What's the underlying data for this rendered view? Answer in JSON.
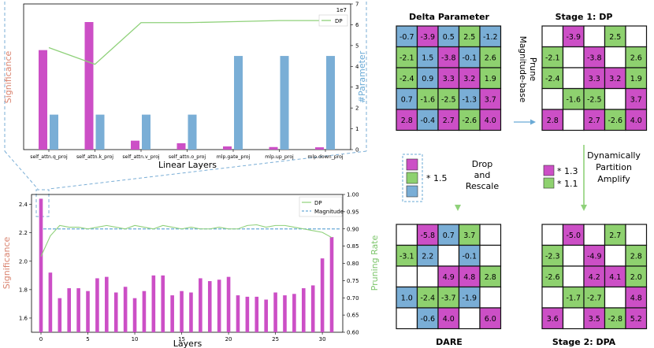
{
  "colors": {
    "magenta": "#cc4fc6",
    "blue": "#7aaed6",
    "green": "#8ed16f",
    "white": "#ffffff",
    "line_green": "#8fd17a",
    "dash_blue": "#6aaad6",
    "significance_label": "#d9826e",
    "param_label": "#6aaad6",
    "pruning_label": "#7cc56a"
  },
  "top_chart": {
    "ylabel_left": "Significance",
    "ylabel_right": "#Parameter",
    "xlabel": "Linear Layers",
    "exponent": "1e7",
    "legend": "DP",
    "right_ticks": [
      "0",
      "1",
      "2",
      "3",
      "4",
      "5",
      "6",
      "7"
    ],
    "categories": [
      "self_attn.q_proj",
      "self_attn.k_proj",
      "self_attn.v_proj",
      "self_attn.o_proj",
      "mlp.gate_proj",
      "mlp.up_proj",
      "mlp.down_proj"
    ],
    "significance": [
      0.78,
      1.0,
      0.07,
      0.05,
      0.025,
      0.02,
      0.018
    ],
    "parameters_1e7": [
      1.68,
      1.68,
      1.68,
      1.68,
      4.5,
      4.5,
      4.5
    ],
    "dp_line_1e7": [
      4.9,
      4.1,
      6.1,
      6.1,
      6.15,
      6.2,
      6.2
    ]
  },
  "bottom_chart": {
    "ylabel_left": "Significance",
    "ylabel_right": "Pruning Rate",
    "xlabel": "Layers",
    "legend_dp": "DP",
    "legend_magnitude": "Magnitude",
    "left_ticks": [
      "1.6",
      "1.8",
      "2.0",
      "2.2",
      "2.4"
    ],
    "right_ticks": [
      "0.60",
      "0.65",
      "0.70",
      "0.75",
      "0.80",
      "0.85",
      "0.90",
      "0.95",
      "1.00"
    ],
    "x_ticks": [
      "0",
      "5",
      "10",
      "15",
      "20",
      "25",
      "30"
    ],
    "significance": [
      2.44,
      1.92,
      1.74,
      1.81,
      1.81,
      1.79,
      1.88,
      1.89,
      1.78,
      1.82,
      1.74,
      1.79,
      1.9,
      1.9,
      1.76,
      1.79,
      1.78,
      1.88,
      1.86,
      1.87,
      1.89,
      1.76,
      1.75,
      1.75,
      1.73,
      1.78,
      1.76,
      1.77,
      1.81,
      1.83,
      2.02,
      2.17
    ],
    "pruning_rate": [
      0.82,
      0.88,
      0.91,
      0.905,
      0.905,
      0.9,
      0.905,
      0.91,
      0.905,
      0.9,
      0.91,
      0.905,
      0.9,
      0.91,
      0.905,
      0.9,
      0.905,
      0.9,
      0.9,
      0.905,
      0.9,
      0.9,
      0.91,
      0.912,
      0.905,
      0.91,
      0.91,
      0.905,
      0.9,
      0.895,
      0.89,
      0.875
    ],
    "magnitude_rate": 0.9
  },
  "diagram": {
    "titles": {
      "delta": "Delta Parameter",
      "stage1": "Stage 1: DP",
      "dare": "DARE",
      "stage2": "Stage 2: DPA"
    },
    "arrow_labels": {
      "prune_line1": "Magnitude-base",
      "prune_line2": "Prune",
      "drop_line1": "Drop",
      "drop_line2": "and",
      "drop_line3": "Rescale",
      "dpa_line1": "Dynamically",
      "dpa_line2": "Partition",
      "dpa_line3": "Amplify"
    },
    "legend_dare": "* 1.5",
    "legend_dpa_1": "* 1.3",
    "legend_dpa_2": "* 1.1",
    "grids": {
      "delta": [
        [
          [
            "-0.7",
            "b"
          ],
          [
            "-3.9",
            "m"
          ],
          [
            "0.5",
            "b"
          ],
          [
            "2.5",
            "g"
          ],
          [
            "-1.2",
            "b"
          ]
        ],
        [
          [
            "-2.1",
            "g"
          ],
          [
            "1.5",
            "b"
          ],
          [
            "-3.8",
            "m"
          ],
          [
            "-0.1",
            "b"
          ],
          [
            "2.6",
            "g"
          ]
        ],
        [
          [
            "-2.4",
            "g"
          ],
          [
            "0.9",
            "b"
          ],
          [
            "3.3",
            "m"
          ],
          [
            "3.2",
            "m"
          ],
          [
            "1.9",
            "g"
          ]
        ],
        [
          [
            "0.7",
            "b"
          ],
          [
            "-1.6",
            "g"
          ],
          [
            "-2.5",
            "g"
          ],
          [
            "-1.3",
            "b"
          ],
          [
            "3.7",
            "m"
          ]
        ],
        [
          [
            "2.8",
            "m"
          ],
          [
            "-0.4",
            "b"
          ],
          [
            "2.7",
            "m"
          ],
          [
            "-2.6",
            "g"
          ],
          [
            "4.0",
            "m"
          ]
        ]
      ],
      "stage1": [
        [
          [
            "",
            ""
          ],
          [
            "-3.9",
            "m"
          ],
          [
            "",
            ""
          ],
          [
            "2.5",
            "g"
          ],
          [
            "",
            ""
          ]
        ],
        [
          [
            "-2.1",
            "g"
          ],
          [
            "",
            ""
          ],
          [
            "-3.8",
            "m"
          ],
          [
            "",
            ""
          ],
          [
            "2.6",
            "g"
          ]
        ],
        [
          [
            "-2.4",
            "g"
          ],
          [
            "",
            ""
          ],
          [
            "3.3",
            "m"
          ],
          [
            "3.2",
            "m"
          ],
          [
            "1.9",
            "g"
          ]
        ],
        [
          [
            "",
            ""
          ],
          [
            "-1.6",
            "g"
          ],
          [
            "-2.5",
            "g"
          ],
          [
            "",
            ""
          ],
          [
            "3.7",
            "m"
          ]
        ],
        [
          [
            "2.8",
            "m"
          ],
          [
            "",
            ""
          ],
          [
            "2.7",
            "m"
          ],
          [
            "-2.6",
            "g"
          ],
          [
            "4.0",
            "m"
          ]
        ]
      ],
      "dare": [
        [
          [
            "",
            ""
          ],
          [
            "-5.8",
            "m"
          ],
          [
            "0.7",
            "b"
          ],
          [
            "3.7",
            "g"
          ],
          [
            "",
            ""
          ]
        ],
        [
          [
            "-3.1",
            "g"
          ],
          [
            "2.2",
            "b"
          ],
          [
            "",
            ""
          ],
          [
            "-0.1",
            "b"
          ],
          [
            "",
            ""
          ]
        ],
        [
          [
            "",
            ""
          ],
          [
            "",
            ""
          ],
          [
            "4.9",
            "m"
          ],
          [
            "4.8",
            "m"
          ],
          [
            "2.8",
            "g"
          ]
        ],
        [
          [
            "1.0",
            "b"
          ],
          [
            "-2.4",
            "g"
          ],
          [
            "-3.7",
            "g"
          ],
          [
            "-1.9",
            "b"
          ],
          [
            "",
            ""
          ]
        ],
        [
          [
            "",
            ""
          ],
          [
            "-0.6",
            "b"
          ],
          [
            "4.0",
            "m"
          ],
          [
            "",
            ""
          ],
          [
            "6.0",
            "m"
          ]
        ]
      ],
      "stage2": [
        [
          [
            "",
            ""
          ],
          [
            "-5.0",
            "m"
          ],
          [
            "",
            ""
          ],
          [
            "2.7",
            "g"
          ],
          [
            "",
            ""
          ]
        ],
        [
          [
            "-2.3",
            "g"
          ],
          [
            "",
            ""
          ],
          [
            "-4.9",
            "m"
          ],
          [
            "",
            ""
          ],
          [
            "2.8",
            "g"
          ]
        ],
        [
          [
            "-2.6",
            "g"
          ],
          [
            "",
            ""
          ],
          [
            "4.2",
            "m"
          ],
          [
            "4.1",
            "m"
          ],
          [
            "2.0",
            "g"
          ]
        ],
        [
          [
            "",
            ""
          ],
          [
            "-1.7",
            "g"
          ],
          [
            "-2.7",
            "g"
          ],
          [
            "",
            ""
          ],
          [
            "4.8",
            "m"
          ]
        ],
        [
          [
            "3.6",
            "m"
          ],
          [
            "",
            ""
          ],
          [
            "3.5",
            "m"
          ],
          [
            "-2.8",
            "g"
          ],
          [
            "5.2",
            "m"
          ]
        ]
      ]
    }
  }
}
